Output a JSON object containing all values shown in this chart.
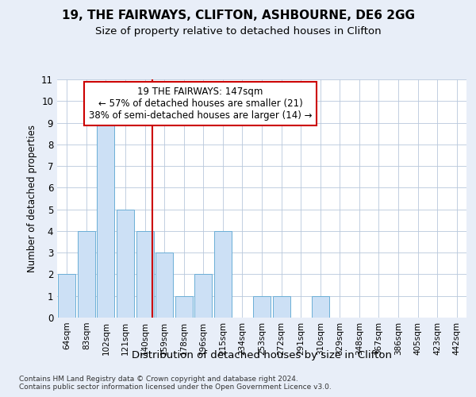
{
  "title1": "19, THE FAIRWAYS, CLIFTON, ASHBOURNE, DE6 2GG",
  "title2": "Size of property relative to detached houses in Clifton",
  "xlabel": "Distribution of detached houses by size in Clifton",
  "ylabel": "Number of detached properties",
  "categories": [
    "64sqm",
    "83sqm",
    "102sqm",
    "121sqm",
    "140sqm",
    "159sqm",
    "178sqm",
    "196sqm",
    "215sqm",
    "234sqm",
    "253sqm",
    "272sqm",
    "291sqm",
    "310sqm",
    "329sqm",
    "348sqm",
    "367sqm",
    "386sqm",
    "405sqm",
    "423sqm",
    "442sqm"
  ],
  "values": [
    2,
    4,
    9,
    5,
    4,
    3,
    1,
    2,
    4,
    0,
    1,
    1,
    0,
    1,
    0,
    0,
    0,
    0,
    0,
    0,
    0
  ],
  "bar_color": "#cce0f5",
  "bar_edge_color": "#6baed6",
  "grid_color": "#b8c8dc",
  "subject_line_color": "#cc0000",
  "annotation_text": "19 THE FAIRWAYS: 147sqm\n← 57% of detached houses are smaller (21)\n38% of semi-detached houses are larger (14) →",
  "annotation_box_color": "#cc0000",
  "ylim": [
    0,
    11
  ],
  "yticks": [
    0,
    1,
    2,
    3,
    4,
    5,
    6,
    7,
    8,
    9,
    10,
    11
  ],
  "footnote": "Contains HM Land Registry data © Crown copyright and database right 2024.\nContains public sector information licensed under the Open Government Licence v3.0.",
  "background_color": "#e8eef8",
  "plot_bg_color": "#ffffff",
  "title1_fontsize": 11,
  "title2_fontsize": 9.5,
  "xlabel_fontsize": 9.5,
  "ylabel_fontsize": 8.5,
  "annotation_fontsize": 8.5
}
